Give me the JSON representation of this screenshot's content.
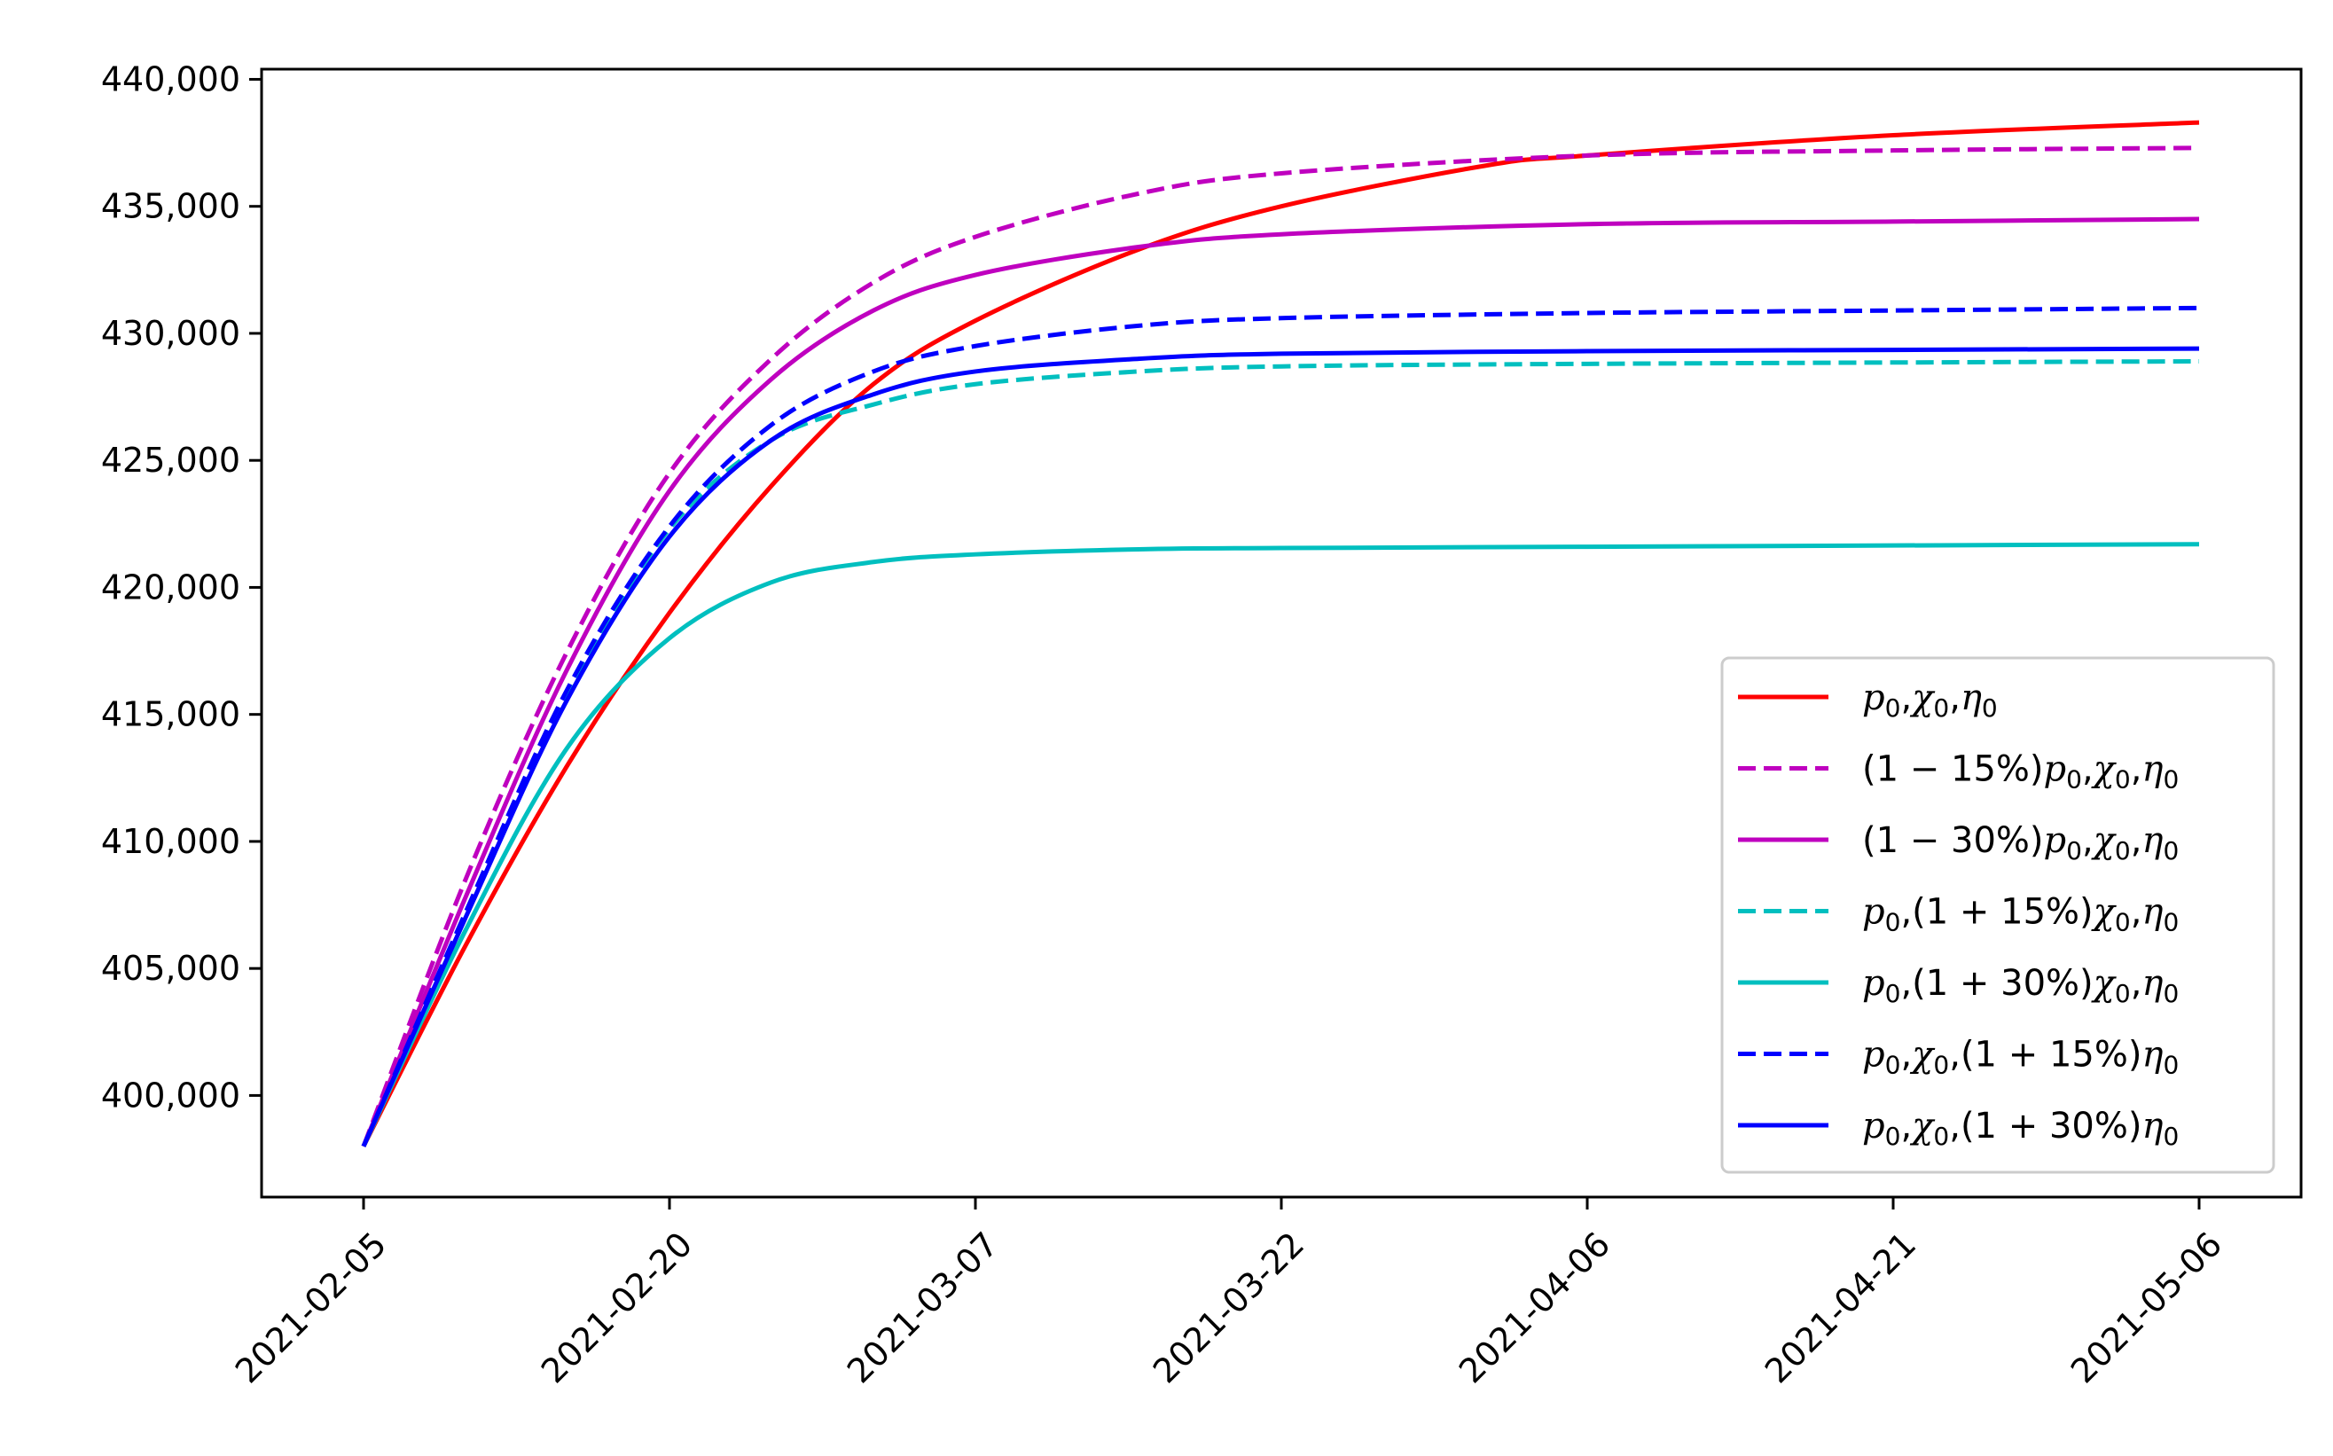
{
  "chart_data": {
    "type": "line",
    "x_ticks": [
      "2021-02-05",
      "2021-02-20",
      "2021-03-07",
      "2021-03-22",
      "2021-04-06",
      "2021-04-21",
      "2021-05-06"
    ],
    "y_ticks": [
      "400,000",
      "405,000",
      "410,000",
      "415,000",
      "420,000",
      "425,000",
      "430,000",
      "435,000",
      "440,000"
    ],
    "x_range": [
      "2021-01-31",
      "2021-05-11"
    ],
    "ylim": [
      396000,
      440400
    ],
    "grid": false,
    "legend_position": "lower right",
    "series": [
      {
        "name": "p0,χ0,η0",
        "color": "#ff0000",
        "dash": "solid",
        "points": [
          [
            "2021-02-05",
            398000
          ],
          [
            "2021-02-10",
            405900
          ],
          [
            "2021-02-15",
            413000
          ],
          [
            "2021-02-20",
            419000
          ],
          [
            "2021-02-25",
            424000
          ],
          [
            "2021-03-02",
            428000
          ],
          [
            "2021-03-07",
            430500
          ],
          [
            "2021-03-15",
            433300
          ],
          [
            "2021-03-22",
            435000
          ],
          [
            "2021-04-01",
            436600
          ],
          [
            "2021-04-06",
            437000
          ],
          [
            "2021-04-21",
            437800
          ],
          [
            "2021-05-06",
            438300
          ]
        ]
      },
      {
        "name": "(1−15%)p0,χ0,η0",
        "color": "#bf00bf",
        "dash": "dashed",
        "points": [
          [
            "2021-02-05",
            398000
          ],
          [
            "2021-02-10",
            408500
          ],
          [
            "2021-02-15",
            417500
          ],
          [
            "2021-02-20",
            424500
          ],
          [
            "2021-02-25",
            429000
          ],
          [
            "2021-03-02",
            432000
          ],
          [
            "2021-03-07",
            433800
          ],
          [
            "2021-03-15",
            435500
          ],
          [
            "2021-03-22",
            436300
          ],
          [
            "2021-04-06",
            437000
          ],
          [
            "2021-04-21",
            437200
          ],
          [
            "2021-05-06",
            437300
          ]
        ]
      },
      {
        "name": "(1−30%)p0,χ0,η0",
        "color": "#bf00bf",
        "dash": "solid",
        "points": [
          [
            "2021-02-05",
            398000
          ],
          [
            "2021-02-10",
            407800
          ],
          [
            "2021-02-15",
            416800
          ],
          [
            "2021-02-20",
            423800
          ],
          [
            "2021-02-25",
            428200
          ],
          [
            "2021-03-02",
            430900
          ],
          [
            "2021-03-07",
            432300
          ],
          [
            "2021-03-15",
            433400
          ],
          [
            "2021-03-22",
            433900
          ],
          [
            "2021-04-06",
            434300
          ],
          [
            "2021-04-21",
            434400
          ],
          [
            "2021-05-06",
            434500
          ]
        ]
      },
      {
        "name": "p0,(1+15%)χ0,η0",
        "color": "#00bfbf",
        "dash": "dashed",
        "points": [
          [
            "2021-02-05",
            398000
          ],
          [
            "2021-02-10",
            407000
          ],
          [
            "2021-02-15",
            415800
          ],
          [
            "2021-02-20",
            422300
          ],
          [
            "2021-02-25",
            425800
          ],
          [
            "2021-03-02",
            427200
          ],
          [
            "2021-03-07",
            428000
          ],
          [
            "2021-03-15",
            428500
          ],
          [
            "2021-03-22",
            428700
          ],
          [
            "2021-04-06",
            428800
          ],
          [
            "2021-05-06",
            428900
          ]
        ]
      },
      {
        "name": "p0,(1+30%)χ0,η0",
        "color": "#00bfbf",
        "dash": "solid",
        "points": [
          [
            "2021-02-05",
            398000
          ],
          [
            "2021-02-10",
            406500
          ],
          [
            "2021-02-15",
            413700
          ],
          [
            "2021-02-20",
            418000
          ],
          [
            "2021-02-25",
            420200
          ],
          [
            "2021-03-02",
            421000
          ],
          [
            "2021-03-07",
            421300
          ],
          [
            "2021-03-15",
            421500
          ],
          [
            "2021-03-22",
            421550
          ],
          [
            "2021-04-06",
            421600
          ],
          [
            "2021-05-06",
            421700
          ]
        ]
      },
      {
        "name": "p0,χ0,(1+15%)η0",
        "color": "#0000ff",
        "dash": "dashed",
        "points": [
          [
            "2021-02-05",
            398000
          ],
          [
            "2021-02-10",
            407200
          ],
          [
            "2021-02-15",
            416000
          ],
          [
            "2021-02-20",
            422400
          ],
          [
            "2021-02-25",
            426400
          ],
          [
            "2021-03-02",
            428500
          ],
          [
            "2021-03-07",
            429500
          ],
          [
            "2021-03-15",
            430300
          ],
          [
            "2021-03-22",
            430600
          ],
          [
            "2021-04-06",
            430800
          ],
          [
            "2021-04-21",
            430900
          ],
          [
            "2021-05-06",
            431000
          ]
        ]
      },
      {
        "name": "p0,χ0,(1+30%)η0",
        "color": "#0000ff",
        "dash": "solid",
        "points": [
          [
            "2021-02-05",
            398000
          ],
          [
            "2021-02-10",
            407000
          ],
          [
            "2021-02-15",
            415600
          ],
          [
            "2021-02-20",
            422000
          ],
          [
            "2021-02-25",
            425800
          ],
          [
            "2021-03-02",
            427600
          ],
          [
            "2021-03-07",
            428500
          ],
          [
            "2021-03-15",
            429000
          ],
          [
            "2021-03-22",
            429200
          ],
          [
            "2021-04-06",
            429300
          ],
          [
            "2021-04-21",
            429350
          ],
          [
            "2021-05-06",
            429400
          ]
        ]
      }
    ],
    "legend_labels": [
      [
        {
          "t": "p",
          "i": true
        },
        {
          "t": "0",
          "sub": true
        },
        {
          "t": ","
        },
        {
          "t": "χ",
          "i": true
        },
        {
          "t": "0",
          "sub": true
        },
        {
          "t": ","
        },
        {
          "t": "η",
          "i": true
        },
        {
          "t": "0",
          "sub": true
        }
      ],
      [
        {
          "t": "(1 − 15%)"
        },
        {
          "t": "p",
          "i": true
        },
        {
          "t": "0",
          "sub": true
        },
        {
          "t": ","
        },
        {
          "t": "χ",
          "i": true
        },
        {
          "t": "0",
          "sub": true
        },
        {
          "t": ","
        },
        {
          "t": "η",
          "i": true
        },
        {
          "t": "0",
          "sub": true
        }
      ],
      [
        {
          "t": "(1 − 30%)"
        },
        {
          "t": "p",
          "i": true
        },
        {
          "t": "0",
          "sub": true
        },
        {
          "t": ","
        },
        {
          "t": "χ",
          "i": true
        },
        {
          "t": "0",
          "sub": true
        },
        {
          "t": ","
        },
        {
          "t": "η",
          "i": true
        },
        {
          "t": "0",
          "sub": true
        }
      ],
      [
        {
          "t": "p",
          "i": true
        },
        {
          "t": "0",
          "sub": true
        },
        {
          "t": ",(1 + 15%)"
        },
        {
          "t": "χ",
          "i": true
        },
        {
          "t": "0",
          "sub": true
        },
        {
          "t": ","
        },
        {
          "t": "η",
          "i": true
        },
        {
          "t": "0",
          "sub": true
        }
      ],
      [
        {
          "t": "p",
          "i": true
        },
        {
          "t": "0",
          "sub": true
        },
        {
          "t": ",(1 + 30%)"
        },
        {
          "t": "χ",
          "i": true
        },
        {
          "t": "0",
          "sub": true
        },
        {
          "t": ","
        },
        {
          "t": "η",
          "i": true
        },
        {
          "t": "0",
          "sub": true
        }
      ],
      [
        {
          "t": "p",
          "i": true
        },
        {
          "t": "0",
          "sub": true
        },
        {
          "t": ","
        },
        {
          "t": "χ",
          "i": true
        },
        {
          "t": "0",
          "sub": true
        },
        {
          "t": ",(1 + 15%)"
        },
        {
          "t": "η",
          "i": true
        },
        {
          "t": "0",
          "sub": true
        }
      ],
      [
        {
          "t": "p",
          "i": true
        },
        {
          "t": "0",
          "sub": true
        },
        {
          "t": ","
        },
        {
          "t": "χ",
          "i": true
        },
        {
          "t": "0",
          "sub": true
        },
        {
          "t": ",(1 + 30%)"
        },
        {
          "t": "η",
          "i": true
        },
        {
          "t": "0",
          "sub": true
        }
      ]
    ]
  }
}
